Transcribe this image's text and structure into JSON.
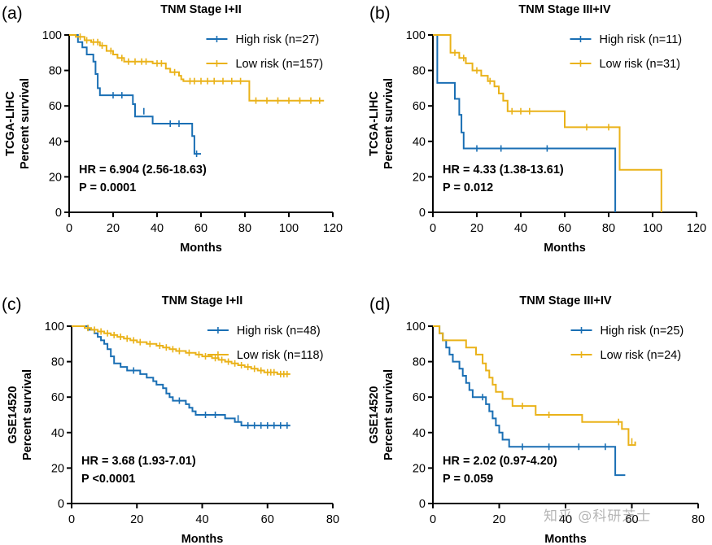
{
  "colors": {
    "high": "#1a6fb4",
    "low": "#eab219",
    "axis": "#000000"
  },
  "watermark": "知乎 @科研芝士",
  "chart_data": [
    {
      "type": "line",
      "panel": "(a)",
      "title": "TNM Stage I+II",
      "dataset": "TCGA-LIHC",
      "ylabel": "Percent survival",
      "xlabel": "Months",
      "xlim": [
        0,
        120
      ],
      "ylim": [
        0,
        100
      ],
      "xticks": [
        0,
        20,
        40,
        60,
        80,
        100,
        120
      ],
      "yticks": [
        0,
        20,
        40,
        60,
        80,
        100
      ],
      "hr": "HR = 6.904 (2.56-18.63)",
      "p": "P = 0.0001",
      "series": [
        {
          "name": "High risk (n=27)",
          "color": "high",
          "steps": [
            [
              0,
              100
            ],
            [
              4,
              96
            ],
            [
              6,
              93
            ],
            [
              8,
              89
            ],
            [
              11,
              85
            ],
            [
              12,
              78
            ],
            [
              13,
              70
            ],
            [
              14,
              66
            ],
            [
              29,
              61
            ],
            [
              30,
              54
            ],
            [
              38,
              50
            ],
            [
              56,
              43
            ],
            [
              57,
              33
            ],
            [
              60,
              33
            ]
          ],
          "censors": [
            [
              20,
              66
            ],
            [
              24,
              66
            ],
            [
              34,
              57
            ],
            [
              46,
              50
            ],
            [
              50,
              50
            ],
            [
              58,
              33
            ]
          ]
        },
        {
          "name": "Low risk (n=157)",
          "color": "low",
          "steps": [
            [
              0,
              100
            ],
            [
              3,
              99
            ],
            [
              7,
              97
            ],
            [
              10,
              96
            ],
            [
              14,
              94
            ],
            [
              17,
              91
            ],
            [
              20,
              89
            ],
            [
              22,
              87
            ],
            [
              25,
              85
            ],
            [
              38,
              84
            ],
            [
              44,
              81
            ],
            [
              46,
              79
            ],
            [
              50,
              77
            ],
            [
              51,
              75
            ],
            [
              52,
              74
            ],
            [
              82,
              63
            ],
            [
              116,
              63
            ]
          ],
          "censors": [
            [
              5,
              99
            ],
            [
              8,
              97
            ],
            [
              11,
              96
            ],
            [
              13,
              96
            ],
            [
              15,
              94
            ],
            [
              19,
              91
            ],
            [
              24,
              87
            ],
            [
              27,
              85
            ],
            [
              30,
              85
            ],
            [
              33,
              85
            ],
            [
              35,
              85
            ],
            [
              40,
              84
            ],
            [
              42,
              84
            ],
            [
              48,
              79
            ],
            [
              55,
              74
            ],
            [
              57,
              74
            ],
            [
              60,
              74
            ],
            [
              63,
              74
            ],
            [
              66,
              74
            ],
            [
              70,
              74
            ],
            [
              74,
              74
            ],
            [
              78,
              74
            ],
            [
              85,
              63
            ],
            [
              90,
              63
            ],
            [
              95,
              63
            ],
            [
              100,
              63
            ],
            [
              105,
              63
            ],
            [
              110,
              63
            ],
            [
              114,
              63
            ]
          ]
        }
      ]
    },
    {
      "type": "line",
      "panel": "(b)",
      "title": "TNM Stage III+IV",
      "dataset": "TCGA-LIHC",
      "ylabel": "Percent survival",
      "xlabel": "Months",
      "xlim": [
        0,
        120
      ],
      "ylim": [
        0,
        100
      ],
      "xticks": [
        0,
        20,
        40,
        60,
        80,
        100,
        120
      ],
      "yticks": [
        0,
        20,
        40,
        60,
        80,
        100
      ],
      "hr": "HR = 4.33 (1.38-13.61)",
      "p": "P = 0.012",
      "series": [
        {
          "name": "High risk (n=11)",
          "color": "high",
          "steps": [
            [
              0,
              100
            ],
            [
              2,
              73
            ],
            [
              10,
              64
            ],
            [
              12,
              55
            ],
            [
              13,
              45
            ],
            [
              14,
              36
            ],
            [
              83,
              0
            ]
          ],
          "censors": [
            [
              20,
              36
            ],
            [
              31,
              36
            ],
            [
              52,
              36
            ]
          ]
        },
        {
          "name": "Low risk (n=31)",
          "color": "low",
          "steps": [
            [
              0,
              100
            ],
            [
              8,
              90
            ],
            [
              12,
              87
            ],
            [
              15,
              84
            ],
            [
              18,
              80
            ],
            [
              22,
              77
            ],
            [
              25,
              74
            ],
            [
              28,
              71
            ],
            [
              30,
              67
            ],
            [
              32,
              63
            ],
            [
              34,
              57
            ],
            [
              60,
              48
            ],
            [
              85,
              24
            ],
            [
              104,
              0
            ]
          ],
          "censors": [
            [
              10,
              90
            ],
            [
              14,
              87
            ],
            [
              20,
              80
            ],
            [
              26,
              74
            ],
            [
              36,
              57
            ],
            [
              40,
              57
            ],
            [
              44,
              57
            ],
            [
              70,
              48
            ],
            [
              80,
              48
            ]
          ]
        }
      ]
    },
    {
      "type": "line",
      "panel": "(c)",
      "title": "TNM Stage I+II",
      "dataset": "GSE14520",
      "ylabel": "Percent survival",
      "xlabel": "Months",
      "xlim": [
        0,
        80
      ],
      "ylim": [
        0,
        100
      ],
      "xticks": [
        0,
        20,
        40,
        60,
        80
      ],
      "yticks": [
        0,
        20,
        40,
        60,
        80,
        100
      ],
      "hr": "HR = 3.68 (1.93-7.01)",
      "p": "P <0.0001",
      "series": [
        {
          "name": "High risk (n=48)",
          "color": "high",
          "steps": [
            [
              0,
              100
            ],
            [
              5,
              98
            ],
            [
              7,
              96
            ],
            [
              8,
              94
            ],
            [
              9,
              92
            ],
            [
              10,
              90
            ],
            [
              11,
              87
            ],
            [
              12,
              83
            ],
            [
              13,
              79
            ],
            [
              15,
              77
            ],
            [
              17,
              75
            ],
            [
              21,
              73
            ],
            [
              23,
              71
            ],
            [
              25,
              69
            ],
            [
              26,
              67
            ],
            [
              28,
              65
            ],
            [
              29,
              62
            ],
            [
              30,
              60
            ],
            [
              31,
              58
            ],
            [
              35,
              56
            ],
            [
              36,
              54
            ],
            [
              37,
              52
            ],
            [
              38,
              50
            ],
            [
              47,
              48
            ],
            [
              50,
              46
            ],
            [
              52,
              44
            ],
            [
              67,
              44
            ]
          ],
          "censors": [
            [
              19,
              75
            ],
            [
              33,
              58
            ],
            [
              41,
              50
            ],
            [
              44,
              50
            ],
            [
              51,
              48
            ],
            [
              54,
              44
            ],
            [
              56,
              44
            ],
            [
              58,
              44
            ],
            [
              60,
              44
            ],
            [
              62,
              44
            ],
            [
              64,
              44
            ],
            [
              66,
              44
            ]
          ]
        },
        {
          "name": "Low risk (n=118)",
          "color": "low",
          "steps": [
            [
              0,
              100
            ],
            [
              4,
              99
            ],
            [
              6,
              98
            ],
            [
              8,
              97
            ],
            [
              10,
              96
            ],
            [
              12,
              95
            ],
            [
              14,
              94
            ],
            [
              16,
              93
            ],
            [
              18,
              92
            ],
            [
              20,
              91
            ],
            [
              23,
              90
            ],
            [
              26,
              89
            ],
            [
              28,
              88
            ],
            [
              30,
              87
            ],
            [
              32,
              86
            ],
            [
              35,
              85
            ],
            [
              38,
              84
            ],
            [
              40,
              83
            ],
            [
              43,
              82
            ],
            [
              45,
              81
            ],
            [
              47,
              80
            ],
            [
              49,
              79
            ],
            [
              51,
              78
            ],
            [
              53,
              77
            ],
            [
              55,
              76
            ],
            [
              57,
              75
            ],
            [
              59,
              74
            ],
            [
              63,
              73
            ],
            [
              67,
              73
            ]
          ],
          "censors": [
            [
              5,
              99
            ],
            [
              7,
              98
            ],
            [
              9,
              97
            ],
            [
              11,
              96
            ],
            [
              13,
              95
            ],
            [
              15,
              94
            ],
            [
              17,
              93
            ],
            [
              19,
              92
            ],
            [
              21,
              91
            ],
            [
              24,
              90
            ],
            [
              27,
              89
            ],
            [
              29,
              88
            ],
            [
              31,
              87
            ],
            [
              33,
              86
            ],
            [
              36,
              85
            ],
            [
              39,
              84
            ],
            [
              41,
              83
            ],
            [
              44,
              82
            ],
            [
              46,
              81
            ],
            [
              48,
              80
            ],
            [
              50,
              79
            ],
            [
              52,
              78
            ],
            [
              54,
              77
            ],
            [
              56,
              76
            ],
            [
              58,
              75
            ],
            [
              60,
              74
            ],
            [
              61,
              74
            ],
            [
              62,
              74
            ],
            [
              64,
              73
            ],
            [
              65,
              73
            ],
            [
              66,
              73
            ]
          ]
        }
      ]
    },
    {
      "type": "line",
      "panel": "(d)",
      "title": "TNM Stage III+IV",
      "dataset": "GSE14520",
      "ylabel": "Percent survival",
      "xlabel": "Months",
      "xlim": [
        0,
        80
      ],
      "ylim": [
        0,
        100
      ],
      "xticks": [
        0,
        20,
        40,
        60,
        80
      ],
      "yticks": [
        0,
        20,
        40,
        60,
        80,
        100
      ],
      "hr": "HR = 2.02 (0.97-4.20)",
      "p": "P = 0.059",
      "series": [
        {
          "name": "High risk (n=25)",
          "color": "high",
          "steps": [
            [
              0,
              100
            ],
            [
              2,
              96
            ],
            [
              3,
              92
            ],
            [
              4,
              88
            ],
            [
              5,
              84
            ],
            [
              6,
              80
            ],
            [
              8,
              76
            ],
            [
              9,
              72
            ],
            [
              10,
              68
            ],
            [
              11,
              64
            ],
            [
              12,
              60
            ],
            [
              16,
              56
            ],
            [
              17,
              52
            ],
            [
              18,
              48
            ],
            [
              19,
              44
            ],
            [
              20,
              40
            ],
            [
              21,
              36
            ],
            [
              23,
              32
            ],
            [
              55,
              16
            ],
            [
              58,
              16
            ]
          ],
          "censors": [
            [
              15,
              60
            ],
            [
              27,
              32
            ],
            [
              35,
              32
            ],
            [
              44,
              32
            ],
            [
              52,
              32
            ]
          ]
        },
        {
          "name": "Low risk (n=24)",
          "color": "low",
          "steps": [
            [
              0,
              100
            ],
            [
              2,
              96
            ],
            [
              3,
              92
            ],
            [
              10,
              88
            ],
            [
              13,
              84
            ],
            [
              15,
              79
            ],
            [
              16,
              75
            ],
            [
              17,
              71
            ],
            [
              18,
              67
            ],
            [
              19,
              63
            ],
            [
              21,
              59
            ],
            [
              24,
              55
            ],
            [
              31,
              50
            ],
            [
              45,
              46
            ],
            [
              57,
              42
            ],
            [
              59,
              33
            ],
            [
              61,
              35
            ]
          ],
          "censors": [
            [
              27,
              55
            ],
            [
              35,
              50
            ],
            [
              56,
              46
            ],
            [
              60,
              35
            ]
          ]
        }
      ]
    }
  ]
}
